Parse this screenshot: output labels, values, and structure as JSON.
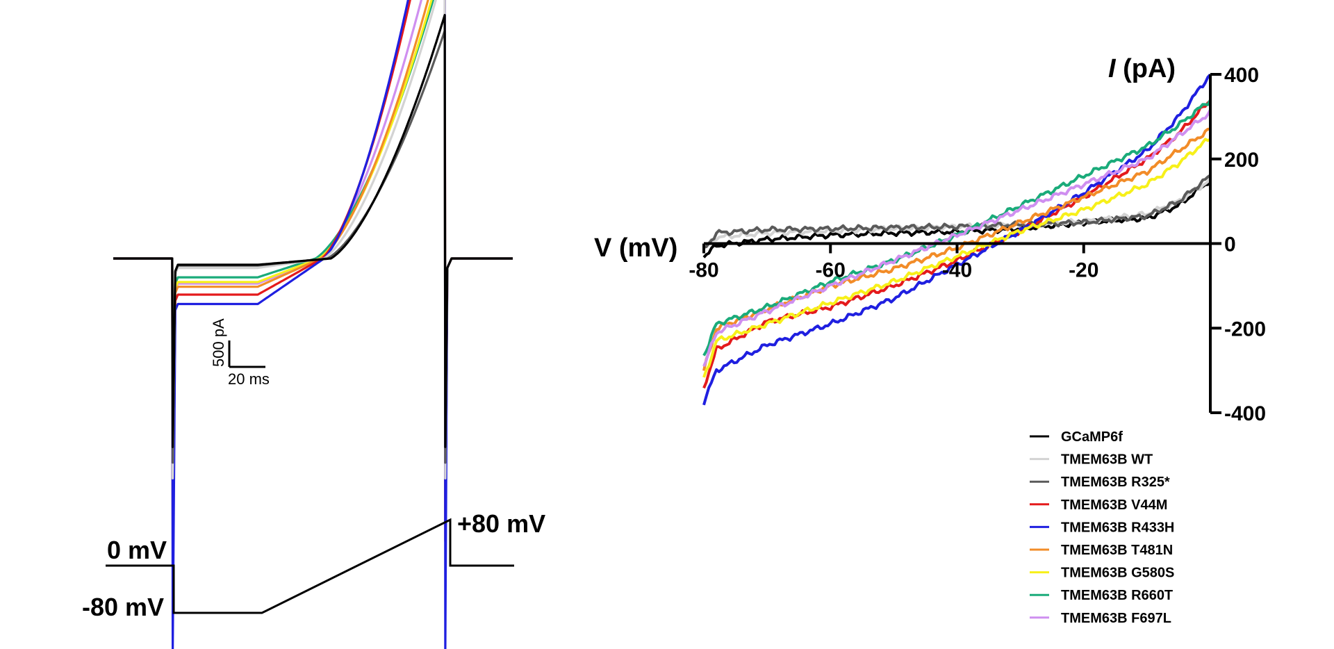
{
  "protocol": {
    "holding_label": "0 mV",
    "step_label": "-80 mV",
    "peak_label": "+80 mV"
  },
  "scale_bar": {
    "current_label": "500 pA",
    "time_label": "20 ms"
  },
  "chart_data": [
    {
      "type": "line",
      "panel": "current traces",
      "x_unit": "ms",
      "y_unit": "pA",
      "xlim": [
        0,
        235
      ],
      "ylim": [
        -2600,
        2900
      ],
      "segments_ms": {
        "hold1": [
          0,
          35
        ],
        "step": [
          35,
          85
        ],
        "ramp": [
          85,
          195
        ],
        "hold2": [
          195,
          235
        ]
      },
      "series": [
        {
          "name": "GCaMP6f",
          "color": "#000000",
          "baseline": 0,
          "step_current": -40,
          "ramp_crossing_ms": 128,
          "peak_current": 1550,
          "transient_min": -1200
        },
        {
          "name": "TMEM63B WT",
          "color": "#d3d3d3",
          "baseline": 0,
          "step_current": -60,
          "ramp_crossing_ms": 124,
          "peak_current": 1850,
          "transient_min": -1400
        },
        {
          "name": "TMEM63B R325*",
          "color": "#5a5a5a",
          "baseline": 0,
          "step_current": -45,
          "ramp_crossing_ms": 126,
          "peak_current": 1450,
          "transient_min": -1300
        },
        {
          "name": "TMEM63B V44M",
          "color": "#e41a1c",
          "baseline": 0,
          "step_current": -230,
          "ramp_crossing_ms": 123,
          "peak_current": 2720,
          "transient_min": -1800
        },
        {
          "name": "TMEM63B R433H",
          "color": "#1f1fe0",
          "baseline": 0,
          "step_current": -290,
          "ramp_crossing_ms": 124,
          "peak_current": 2840,
          "transient_min": -2500
        },
        {
          "name": "TMEM63B T481N",
          "color": "#f28c28",
          "baseline": 0,
          "step_current": -180,
          "ramp_crossing_ms": 122,
          "peak_current": 2050,
          "transient_min": -1700
        },
        {
          "name": "TMEM63B G580S",
          "color": "#f7f01a",
          "baseline": 0,
          "step_current": -150,
          "ramp_crossing_ms": 121,
          "peak_current": 1950,
          "transient_min": -1600
        },
        {
          "name": "TMEM63B R660T",
          "color": "#1aab7a",
          "baseline": 0,
          "step_current": -120,
          "ramp_crossing_ms": 119,
          "peak_current": 1900,
          "transient_min": -1500
        },
        {
          "name": "TMEM63B F697L",
          "color": "#cf8ff0",
          "baseline": 0,
          "step_current": -160,
          "ramp_crossing_ms": 121,
          "peak_current": 2250,
          "transient_min": -1650
        }
      ]
    },
    {
      "type": "line",
      "panel": "I-V curves",
      "xlabel": "V (mV)",
      "ylabel": "I (pA)",
      "xlim": [
        -80,
        0
      ],
      "ylim": [
        -400,
        400
      ],
      "xticks": [
        -80,
        -60,
        -40,
        -20
      ],
      "yticks": [
        400,
        200,
        0,
        -200,
        -400
      ],
      "series": [
        {
          "name": "GCaMP6f",
          "color": "#000000",
          "x": [
            -80,
            -78,
            -70,
            -60,
            -50,
            -40,
            -30,
            -20,
            -10,
            -5,
            0
          ],
          "y": [
            -30,
            -5,
            10,
            20,
            25,
            28,
            35,
            50,
            60,
            90,
            150
          ]
        },
        {
          "name": "TMEM63B WT",
          "color": "#d3d3d3",
          "x": [
            -80,
            -78,
            -70,
            -60,
            -50,
            -40,
            -30,
            -20,
            -10,
            -5,
            0
          ],
          "y": [
            -10,
            15,
            25,
            30,
            35,
            40,
            45,
            52,
            70,
            100,
            150
          ]
        },
        {
          "name": "TMEM63B R325*",
          "color": "#5a5a5a",
          "x": [
            -80,
            -78,
            -70,
            -60,
            -50,
            -40,
            -30,
            -20,
            -10,
            -5,
            0
          ],
          "y": [
            -15,
            25,
            33,
            35,
            38,
            40,
            45,
            50,
            65,
            100,
            160
          ]
        },
        {
          "name": "TMEM63B V44M",
          "color": "#e41a1c",
          "x": [
            -80,
            -78,
            -70,
            -60,
            -50,
            -40,
            -30,
            -20,
            -10,
            -5,
            0
          ],
          "y": [
            -340,
            -250,
            -185,
            -150,
            -100,
            -40,
            30,
            110,
            200,
            260,
            340
          ]
        },
        {
          "name": "TMEM63B R433H",
          "color": "#1f1fe0",
          "x": [
            -80,
            -78,
            -70,
            -60,
            -50,
            -40,
            -30,
            -20,
            -10,
            -5,
            0
          ],
          "y": [
            -375,
            -300,
            -240,
            -190,
            -130,
            -50,
            30,
            120,
            220,
            300,
            400
          ]
        },
        {
          "name": "TMEM63B T481N",
          "color": "#f28c28",
          "x": [
            -80,
            -78,
            -70,
            -60,
            -50,
            -40,
            -30,
            -20,
            -10,
            -5,
            0
          ],
          "y": [
            -300,
            -200,
            -155,
            -100,
            -60,
            -10,
            50,
            110,
            170,
            220,
            270
          ]
        },
        {
          "name": "TMEM63B G580S",
          "color": "#f7f01a",
          "x": [
            -80,
            -78,
            -70,
            -60,
            -50,
            -40,
            -30,
            -20,
            -10,
            -5,
            0
          ],
          "y": [
            -320,
            -230,
            -190,
            -140,
            -90,
            -30,
            30,
            80,
            140,
            190,
            250
          ]
        },
        {
          "name": "TMEM63B R660T",
          "color": "#1aab7a",
          "x": [
            -80,
            -78,
            -70,
            -60,
            -50,
            -40,
            -30,
            -20,
            -10,
            -5,
            0
          ],
          "y": [
            -265,
            -190,
            -150,
            -90,
            -40,
            20,
            90,
            160,
            230,
            280,
            340
          ]
        },
        {
          "name": "TMEM63B F697L",
          "color": "#cf8ff0",
          "x": [
            -80,
            -78,
            -70,
            -60,
            -50,
            -40,
            -30,
            -20,
            -10,
            -5,
            0
          ],
          "y": [
            -290,
            -210,
            -160,
            -100,
            -40,
            20,
            80,
            140,
            200,
            255,
            310
          ]
        }
      ]
    }
  ]
}
